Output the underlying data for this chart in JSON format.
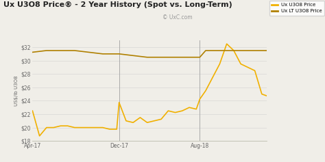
{
  "title": "Ux U3O8 Price® - 2 Year History (Spot vs. Long-Term)",
  "ylabel": "US$∕lb U3O8",
  "watermark": "© UxC.com",
  "legend_labels": [
    "Ux U3O8 Price",
    "Ux LT U3O8 Price"
  ],
  "spot_color": "#F0B000",
  "lt_color": "#B08000",
  "background_color": "#F0EEE8",
  "plot_bg_color": "#F0EEE8",
  "ylim": [
    18,
    33
  ],
  "yticks": [
    18,
    20,
    22,
    24,
    26,
    28,
    30,
    32
  ],
  "ytick_labels": [
    "$18",
    "$20",
    "$22",
    "$24",
    "$26",
    "$28",
    "$30",
    "$32"
  ],
  "vline_x": [
    0.37,
    0.715
  ],
  "xtick_positions": [
    0.0,
    0.37,
    0.715
  ],
  "xtick_labels": [
    "Apr-17",
    "Dec-17",
    "Aug-18"
  ],
  "spot_x": [
    0.0,
    0.03,
    0.06,
    0.09,
    0.12,
    0.15,
    0.18,
    0.21,
    0.24,
    0.27,
    0.3,
    0.33,
    0.36,
    0.37,
    0.4,
    0.43,
    0.46,
    0.49,
    0.52,
    0.55,
    0.58,
    0.61,
    0.64,
    0.67,
    0.7,
    0.715,
    0.74,
    0.77,
    0.8,
    0.83,
    0.86,
    0.89,
    0.92,
    0.95,
    0.98,
    1.0
  ],
  "spot_y": [
    22.5,
    18.75,
    20.0,
    20.0,
    20.25,
    20.25,
    20.0,
    20.0,
    20.0,
    20.0,
    20.0,
    19.75,
    19.75,
    23.75,
    21.0,
    20.75,
    21.5,
    20.75,
    21.0,
    21.25,
    22.5,
    22.25,
    22.5,
    23.0,
    22.75,
    24.25,
    25.5,
    27.5,
    29.5,
    32.5,
    31.5,
    29.5,
    29.0,
    28.5,
    25.0,
    24.75
  ],
  "lt_x": [
    0.0,
    0.06,
    0.12,
    0.18,
    0.24,
    0.3,
    0.37,
    0.43,
    0.49,
    0.55,
    0.61,
    0.67,
    0.715,
    0.74,
    0.8,
    0.86,
    0.92,
    0.98,
    1.0
  ],
  "lt_y": [
    31.25,
    31.5,
    31.5,
    31.5,
    31.25,
    31.0,
    31.0,
    30.75,
    30.5,
    30.5,
    30.5,
    30.5,
    30.5,
    31.5,
    31.5,
    31.5,
    31.5,
    31.5,
    31.5
  ]
}
